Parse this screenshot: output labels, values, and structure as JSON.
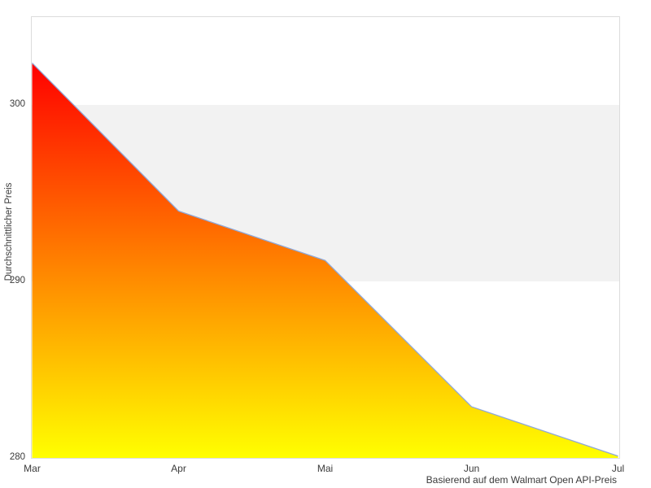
{
  "chart_data": {
    "type": "area",
    "categories": [
      "Mar",
      "Apr",
      "Mai",
      "Jun",
      "Jul"
    ],
    "values": [
      302.4,
      294.0,
      291.2,
      282.9,
      280.1
    ],
    "title": "",
    "ylabel": "Durchschnittlicher Preis",
    "caption": "Basierend auf dem Walmart Open API-Preis",
    "yticks": [
      280,
      290,
      300
    ],
    "ylim": [
      280,
      305
    ],
    "shaded_band": [
      290,
      300
    ],
    "grid": "horizontal-band",
    "legend_position": "none",
    "colors": {
      "gradient_top": "#ff0000",
      "gradient_bottom": "#ffff00",
      "line": "#8fa8d8",
      "band": "#f2f2f2",
      "border": "#dcdcdc",
      "text": "#3a3a3a",
      "background": "#ffffff"
    }
  }
}
